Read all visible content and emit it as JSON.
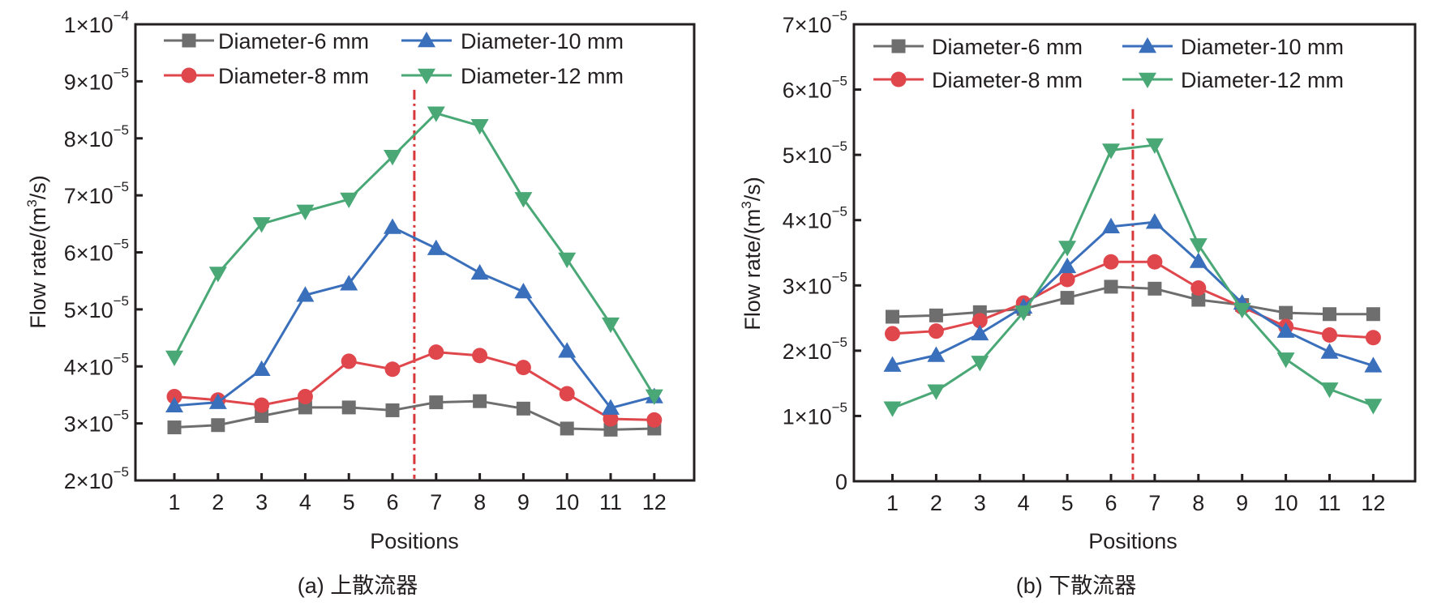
{
  "chart_data": [
    {
      "id": "a",
      "type": "line",
      "title": "",
      "caption": "(a) 上散流器",
      "xlabel": "Positions",
      "ylabel_main": "Flow rate/(m",
      "ylabel_sup": "3",
      "ylabel_tail": "/s)",
      "x": [
        1,
        2,
        3,
        4,
        5,
        6,
        7,
        8,
        9,
        10,
        11,
        12
      ],
      "xticks": [
        "1",
        "2",
        "3",
        "4",
        "5",
        "6",
        "7",
        "8",
        "9",
        "10",
        "11",
        "12"
      ],
      "xlim": [
        0,
        13.8
      ],
      "ylim": [
        2e-05,
        0.0001
      ],
      "yticks": [
        {
          "value": 2e-05,
          "mant": "2×10",
          "exp": "−5"
        },
        {
          "value": 3e-05,
          "mant": "3×10",
          "exp": "−5"
        },
        {
          "value": 4e-05,
          "mant": "4×10",
          "exp": "−5"
        },
        {
          "value": 5e-05,
          "mant": "5×10",
          "exp": "−5"
        },
        {
          "value": 6e-05,
          "mant": "6×10",
          "exp": "−5"
        },
        {
          "value": 7e-05,
          "mant": "7×10",
          "exp": "−5"
        },
        {
          "value": 8e-05,
          "mant": "8×10",
          "exp": "−5"
        },
        {
          "value": 9e-05,
          "mant": "9×10",
          "exp": "−5"
        },
        {
          "value": 0.0001,
          "mant": "1×10",
          "exp": "−4"
        }
      ],
      "divider_x": 6.5,
      "divider_top": 8.85e-05,
      "grid": false,
      "legend_position": "top-left",
      "series": [
        {
          "name": "Diameter-6 mm",
          "marker": "square",
          "color": "#6e6e6e",
          "values": [
            2.93e-05,
            2.97e-05,
            3.13e-05,
            3.28e-05,
            3.28e-05,
            3.23e-05,
            3.37e-05,
            3.39e-05,
            3.26e-05,
            2.91e-05,
            2.89e-05,
            2.91e-05
          ]
        },
        {
          "name": "Diameter-8 mm",
          "marker": "circle",
          "color": "#e0474c",
          "values": [
            3.47e-05,
            3.41e-05,
            3.32e-05,
            3.47e-05,
            4.09e-05,
            3.95e-05,
            4.25e-05,
            4.19e-05,
            3.98e-05,
            3.52e-05,
            3.08e-05,
            3.06e-05
          ]
        },
        {
          "name": "Diameter-10 mm",
          "marker": "triangle-up",
          "color": "#3a6fbb",
          "values": [
            3.31e-05,
            3.37e-05,
            3.95e-05,
            5.25e-05,
            5.45e-05,
            6.44e-05,
            6.07e-05,
            5.64e-05,
            5.31e-05,
            4.27e-05,
            3.27e-05,
            3.47e-05
          ]
        },
        {
          "name": "Diameter-12 mm",
          "marker": "triangle-down",
          "color": "#4aa876",
          "values": [
            4.16e-05,
            5.63e-05,
            6.5e-05,
            6.72e-05,
            6.93e-05,
            7.68e-05,
            8.44e-05,
            8.22e-05,
            6.94e-05,
            5.88e-05,
            4.74e-05,
            3.48e-05
          ]
        }
      ]
    },
    {
      "id": "b",
      "type": "line",
      "title": "",
      "caption": "(b) 下散流器",
      "xlabel": "Positions",
      "ylabel_main": "Flow rate/(m",
      "ylabel_sup": "3",
      "ylabel_tail": "/s)",
      "x": [
        1,
        2,
        3,
        4,
        5,
        6,
        7,
        8,
        9,
        10,
        11,
        12
      ],
      "xticks": [
        "1",
        "2",
        "3",
        "4",
        "5",
        "6",
        "7",
        "8",
        "9",
        "10",
        "11",
        "12"
      ],
      "xlim": [
        0,
        13.8
      ],
      "ylim": [
        0,
        7e-05
      ],
      "yticks": [
        {
          "value": 0,
          "mant": "0",
          "exp": ""
        },
        {
          "value": 1e-05,
          "mant": "1×10",
          "exp": "−5"
        },
        {
          "value": 2e-05,
          "mant": "2×10",
          "exp": "−5"
        },
        {
          "value": 3e-05,
          "mant": "3×10",
          "exp": "−5"
        },
        {
          "value": 4e-05,
          "mant": "4×10",
          "exp": "−5"
        },
        {
          "value": 5e-05,
          "mant": "5×10",
          "exp": "−5"
        },
        {
          "value": 6e-05,
          "mant": "6×10",
          "exp": "−5"
        },
        {
          "value": 7e-05,
          "mant": "7×10",
          "exp": "−5"
        }
      ],
      "divider_x": 6.5,
      "divider_top": 5.7e-05,
      "grid": false,
      "legend_position": "top-left",
      "series": [
        {
          "name": "Diameter-6 mm",
          "marker": "square",
          "color": "#6e6e6e",
          "values": [
            2.52e-05,
            2.54e-05,
            2.59e-05,
            2.64e-05,
            2.81e-05,
            2.98e-05,
            2.95e-05,
            2.78e-05,
            2.7e-05,
            2.58e-05,
            2.56e-05,
            2.56e-05
          ]
        },
        {
          "name": "Diameter-8 mm",
          "marker": "circle",
          "color": "#e0474c",
          "values": [
            2.26e-05,
            2.3e-05,
            2.46e-05,
            2.73e-05,
            3.09e-05,
            3.36e-05,
            3.36e-05,
            2.96e-05,
            2.67e-05,
            2.37e-05,
            2.24e-05,
            2.2e-05
          ]
        },
        {
          "name": "Diameter-10 mm",
          "marker": "triangle-up",
          "color": "#3a6fbb",
          "values": [
            1.78e-05,
            1.93e-05,
            2.26e-05,
            2.67e-05,
            3.29e-05,
            3.9e-05,
            3.97e-05,
            3.37e-05,
            2.73e-05,
            2.3e-05,
            1.98e-05,
            1.77e-05
          ]
        },
        {
          "name": "Diameter-12 mm",
          "marker": "triangle-down",
          "color": "#4aa876",
          "values": [
            1.12e-05,
            1.38e-05,
            1.82e-05,
            2.59e-05,
            3.58e-05,
            5.07e-05,
            5.15e-05,
            3.62e-05,
            2.63e-05,
            1.87e-05,
            1.41e-05,
            1.16e-05
          ]
        }
      ]
    }
  ],
  "colors": {
    "axis": "#231f20",
    "divider": "#d9383a"
  }
}
